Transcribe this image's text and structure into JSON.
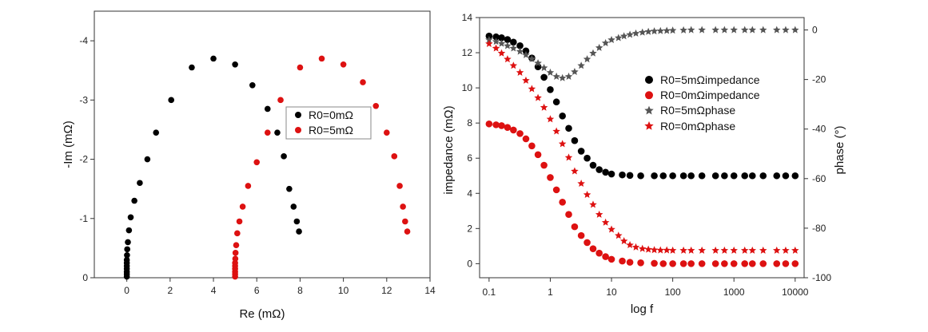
{
  "chart_data": [
    {
      "type": "scatter",
      "title": "",
      "xlabel": "Re (mΩ)",
      "ylabel": "-Im (mΩ)",
      "xlim": [
        -1.5,
        14
      ],
      "ylim": [
        0,
        -4.5
      ],
      "y_inverted": true,
      "xticks": [
        "0",
        "2",
        "4",
        "6",
        "8",
        "10",
        "12",
        "14"
      ],
      "yticks": [
        "0",
        "-1",
        "-2",
        "-3",
        "-4"
      ],
      "legend_placement": "right",
      "series": [
        {
          "name": "R0=0mΩ",
          "color": "#000000",
          "x": [
            0.0,
            0.0,
            0.0,
            0.0,
            0.0,
            0.0,
            0.0,
            0.01,
            0.02,
            0.05,
            0.1,
            0.18,
            0.35,
            0.6,
            0.95,
            1.35,
            2.05,
            3.0,
            4.0,
            5.0,
            5.8,
            6.5,
            6.95,
            7.25,
            7.5,
            7.7,
            7.85,
            7.95
          ],
          "y": [
            -0.02,
            -0.06,
            -0.1,
            -0.15,
            -0.2,
            -0.25,
            -0.3,
            -0.38,
            -0.48,
            -0.6,
            -0.8,
            -1.02,
            -1.3,
            -1.6,
            -2.0,
            -2.45,
            -3.0,
            -3.55,
            -3.7,
            -3.6,
            -3.25,
            -2.85,
            -2.45,
            -2.05,
            -1.5,
            -1.2,
            -0.95,
            -0.78
          ]
        },
        {
          "name": "R0=5mΩ",
          "color": "#dd1111",
          "x": [
            5.0,
            5.0,
            5.0,
            5.0,
            5.0,
            5.0,
            5.01,
            5.02,
            5.05,
            5.1,
            5.2,
            5.35,
            5.6,
            6.0,
            6.5,
            7.1,
            8.0,
            9.0,
            10.0,
            10.9,
            11.5,
            12.0,
            12.35,
            12.6,
            12.75,
            12.85,
            12.95
          ],
          "y": [
            -0.02,
            -0.06,
            -0.1,
            -0.15,
            -0.2,
            -0.25,
            -0.32,
            -0.42,
            -0.55,
            -0.75,
            -0.95,
            -1.2,
            -1.55,
            -1.95,
            -2.45,
            -3.0,
            -3.55,
            -3.7,
            -3.6,
            -3.3,
            -2.9,
            -2.45,
            -2.05,
            -1.55,
            -1.2,
            -0.95,
            -0.78
          ]
        }
      ]
    },
    {
      "type": "scatter",
      "title": "",
      "xlabel": "log f",
      "ylabel": "impedance  (mΩ)",
      "y2label": "phase  (°)",
      "x_scale": "log",
      "xlim": [
        0.07,
        14000
      ],
      "ylim": [
        -0.8,
        14
      ],
      "y2lim": [
        -100,
        5
      ],
      "xticks": [
        "0.1",
        "1",
        "10",
        "100",
        "1000",
        "10000"
      ],
      "yticks": [
        "0",
        "2",
        "4",
        "6",
        "8",
        "10",
        "12",
        "14"
      ],
      "y2ticks": [
        "0",
        "-20",
        "-40",
        "-60",
        "-80",
        "-100"
      ],
      "legend_placement": "top-right",
      "series": [
        {
          "name": "R0=5mΩimpedance",
          "axis": "left",
          "marker": "circle",
          "color": "#000000",
          "x": [
            0.1,
            0.13,
            0.16,
            0.2,
            0.25,
            0.32,
            0.4,
            0.5,
            0.63,
            0.79,
            1.0,
            1.26,
            1.58,
            2.0,
            2.5,
            3.2,
            4.0,
            5.0,
            6.3,
            8.0,
            10,
            15,
            20,
            30,
            50,
            70,
            100,
            150,
            200,
            300,
            500,
            700,
            1000,
            1500,
            2000,
            3000,
            5000,
            7000,
            10000
          ],
          "y": [
            12.95,
            12.9,
            12.85,
            12.75,
            12.6,
            12.4,
            12.1,
            11.7,
            11.2,
            10.6,
            9.9,
            9.2,
            8.4,
            7.7,
            7.0,
            6.4,
            6.0,
            5.6,
            5.35,
            5.2,
            5.1,
            5.05,
            5.02,
            5.0,
            5.0,
            5.0,
            5.0,
            5.0,
            5.0,
            5.0,
            5.0,
            5.0,
            5.0,
            5.0,
            5.0,
            5.0,
            5.0,
            5.0,
            5.0
          ]
        },
        {
          "name": "R0=0mΩimpedance",
          "axis": "left",
          "marker": "circle",
          "color": "#dd1111",
          "x": [
            0.1,
            0.13,
            0.16,
            0.2,
            0.25,
            0.32,
            0.4,
            0.5,
            0.63,
            0.79,
            1.0,
            1.26,
            1.58,
            2.0,
            2.5,
            3.2,
            4.0,
            5.0,
            6.3,
            8.0,
            10,
            15,
            20,
            30,
            50,
            70,
            100,
            150,
            200,
            300,
            500,
            700,
            1000,
            1500,
            2000,
            3000,
            5000,
            7000,
            10000
          ],
          "y": [
            7.95,
            7.9,
            7.85,
            7.75,
            7.6,
            7.4,
            7.1,
            6.7,
            6.2,
            5.6,
            4.9,
            4.2,
            3.5,
            2.8,
            2.1,
            1.6,
            1.2,
            0.85,
            0.6,
            0.4,
            0.25,
            0.15,
            0.08,
            0.05,
            0.02,
            0.0,
            0.0,
            0.0,
            0.0,
            0.0,
            0.0,
            0.0,
            0.0,
            0.0,
            0.0,
            0.0,
            0.0,
            0.0,
            0.0
          ]
        },
        {
          "name": "R0=5mΩphase",
          "axis": "right",
          "marker": "star",
          "color": "#555555",
          "x": [
            0.1,
            0.13,
            0.16,
            0.2,
            0.25,
            0.32,
            0.4,
            0.5,
            0.63,
            0.79,
            1.0,
            1.26,
            1.58,
            2.0,
            2.5,
            3.2,
            4.0,
            5.0,
            6.3,
            8.0,
            10,
            13,
            16,
            20,
            25,
            32,
            40,
            50,
            63,
            80,
            100,
            150,
            200,
            300,
            500,
            700,
            1000,
            1500,
            2000,
            3000,
            5000,
            7000,
            10000
          ],
          "y": [
            -4.0,
            -4.7,
            -5.5,
            -6.4,
            -7.4,
            -8.7,
            -10.1,
            -11.7,
            -13.4,
            -15.3,
            -17.2,
            -18.8,
            -19.4,
            -18.8,
            -16.9,
            -14.4,
            -11.8,
            -9.4,
            -7.2,
            -5.3,
            -4.0,
            -3.2,
            -2.5,
            -1.9,
            -1.4,
            -1.0,
            -0.7,
            -0.5,
            -0.4,
            -0.3,
            -0.2,
            -0.1,
            0.0,
            0.0,
            0.0,
            0.0,
            0.0,
            0.0,
            0.0,
            0.0,
            0.0,
            0.0,
            0.0
          ]
        },
        {
          "name": "R0=0mΩphase",
          "axis": "right",
          "marker": "star",
          "color": "#dd1111",
          "x": [
            0.1,
            0.13,
            0.16,
            0.2,
            0.25,
            0.32,
            0.4,
            0.5,
            0.63,
            0.79,
            1.0,
            1.26,
            1.58,
            2.0,
            2.5,
            3.2,
            4.0,
            5.0,
            6.3,
            8.0,
            10,
            13,
            16,
            20,
            25,
            32,
            40,
            50,
            63,
            80,
            100,
            150,
            200,
            300,
            500,
            700,
            1000,
            1500,
            2000,
            3000,
            5000,
            7000,
            10000
          ],
          "y": [
            -5.6,
            -7.4,
            -9.4,
            -11.8,
            -14.4,
            -17.2,
            -20.4,
            -23.8,
            -27.4,
            -31.3,
            -36.0,
            -40.9,
            -46.0,
            -51.5,
            -57.0,
            -62.0,
            -66.5,
            -70.5,
            -74.5,
            -77.7,
            -80.5,
            -83.0,
            -85.2,
            -86.8,
            -87.7,
            -88.3,
            -88.6,
            -88.8,
            -88.9,
            -88.9,
            -89.0,
            -89.0,
            -89.0,
            -89.0,
            -89.0,
            -89.0,
            -89.0,
            -89.0,
            -89.0,
            -89.0,
            -89.0,
            -89.0,
            -89.0
          ]
        }
      ]
    }
  ]
}
